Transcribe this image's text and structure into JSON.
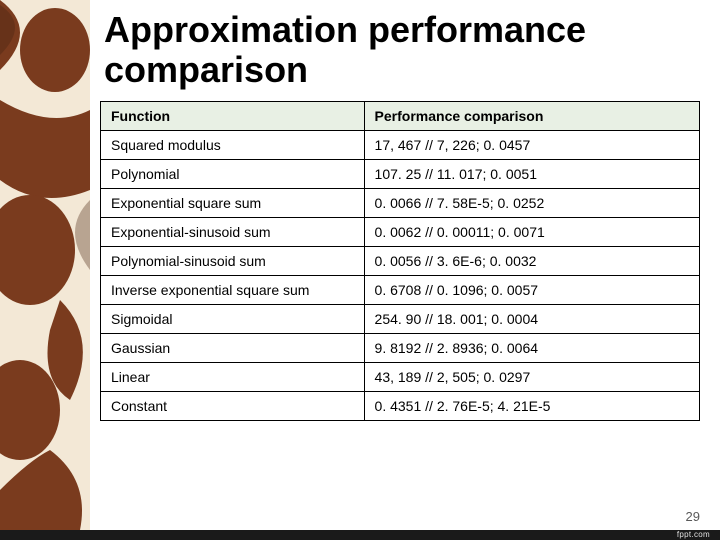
{
  "title": "Approximation performance comparison",
  "table": {
    "columns": [
      "Function",
      "Performance comparison"
    ],
    "rows": [
      [
        "Squared modulus",
        "17, 467 // 7, 226; 0. 0457"
      ],
      [
        "Polynomial",
        "107. 25 // 11. 017; 0. 0051"
      ],
      [
        "Exponential square sum",
        "0. 0066 // 7. 58E-5; 0. 0252"
      ],
      [
        "Exponential-sinusoid sum",
        "0. 0062 // 0. 00011; 0. 0071"
      ],
      [
        "Polynomial-sinusoid sum",
        "0. 0056 // 3. 6E-6; 0. 0032"
      ],
      [
        "Inverse exponential square sum",
        "0. 6708 // 0. 1096; 0. 0057"
      ],
      [
        "Sigmoidal",
        "254. 90 // 18. 001; 0. 0004"
      ],
      [
        "Gaussian",
        "9. 8192 // 2. 8936; 0. 0064"
      ],
      [
        "Linear",
        "43, 189 // 2, 505; 0. 0297"
      ],
      [
        "Constant",
        "0. 4351 // 2. 76E-5; 4. 21E-5"
      ]
    ],
    "header_bg": "#e8f0e4",
    "border_color": "#000000",
    "cell_bg": "#ffffff",
    "font_size": 14
  },
  "page_number": "29",
  "footer_brand": "fppt.com",
  "styling": {
    "title_fontsize": 36,
    "title_color": "#000000",
    "page_num_color": "#595959",
    "bg_pattern_colors": {
      "cream": "#f3e8d6",
      "brown": "#7a3b1e",
      "dark_brown": "#4a2512"
    },
    "footer_bar_color": "#1a1a1a"
  }
}
